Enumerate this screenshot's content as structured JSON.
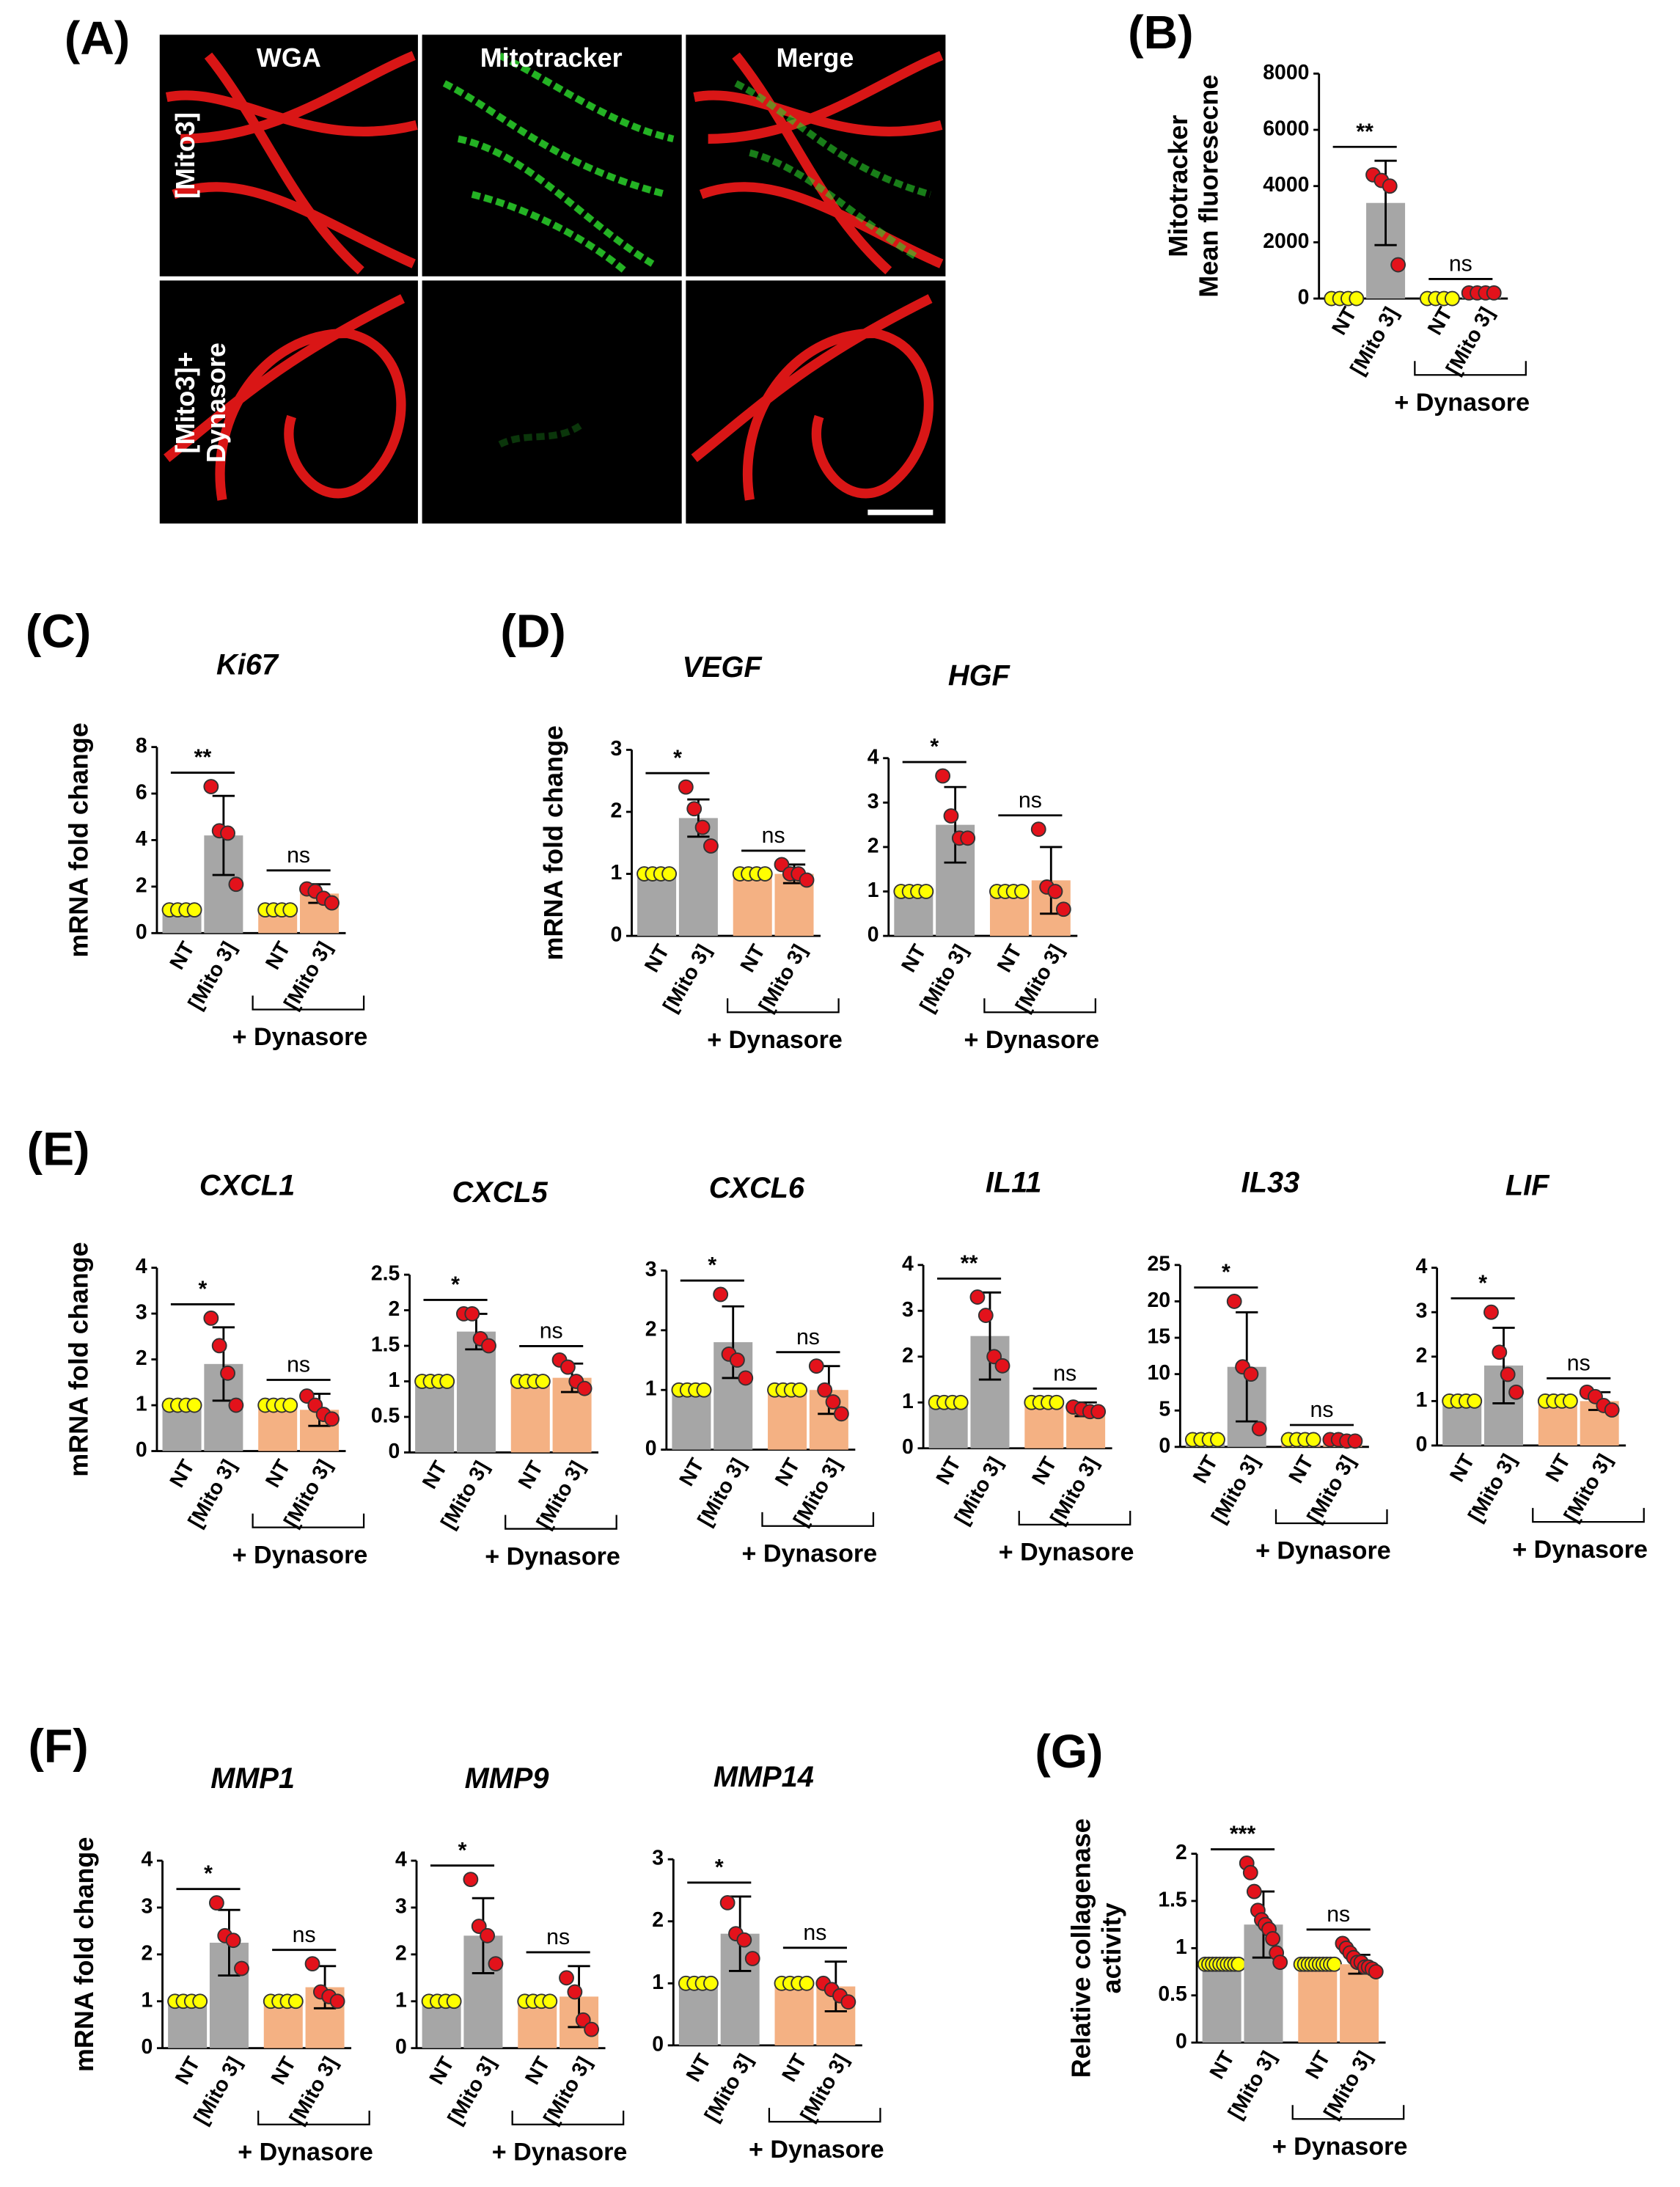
{
  "panel_labels": [
    "(A)",
    "(B)",
    "(C)",
    "(D)",
    "(E)",
    "(F)",
    "(G)"
  ],
  "figure_a": {
    "columns": [
      "WGA",
      "Mitotracker",
      "Merge"
    ],
    "rows": [
      [
        "[Mito3]"
      ],
      [
        "[Mito3]+",
        "Dynasore"
      ]
    ]
  },
  "chart_data": [
    {
      "type": "bar",
      "ylabel": [
        "Mitotracker",
        "Mean fluoresecne"
      ],
      "categories": [
        "NT",
        "[Mito 3]",
        "NT",
        "[Mito 3]"
      ],
      "colors": [
        "#a6a6a6",
        "#a6a6a6",
        "#a6a6a6",
        "#a6a6a6"
      ],
      "point_colors": [
        "#ffff00",
        "#e3121b",
        "#ffff00",
        "#e3121b"
      ],
      "values": [
        0,
        3400,
        80,
        200
      ],
      "errors": [
        0,
        1500,
        0,
        0
      ],
      "points": [
        [
          0,
          0,
          0,
          0
        ],
        [
          4400,
          4200,
          4000,
          1200
        ],
        [
          0,
          0,
          0,
          0
        ],
        [
          200,
          200,
          200,
          200
        ]
      ],
      "significance": [
        "**",
        "ns"
      ],
      "group_label": "+ Dynasore",
      "ylim": [
        0,
        8000
      ],
      "yticks": [
        0,
        2000,
        4000,
        6000,
        8000
      ]
    },
    {
      "type": "bar",
      "title": "Ki67",
      "ylabel": [
        "mRNA fold change"
      ],
      "categories": [
        "NT",
        "[Mito 3]",
        "NT",
        "[Mito 3]"
      ],
      "colors": [
        "#a6a6a6",
        "#a6a6a6",
        "#f4b183",
        "#f4b183"
      ],
      "point_colors": [
        "#ffff00",
        "#e3121b",
        "#ffff00",
        "#e3121b"
      ],
      "values": [
        1,
        4.2,
        1,
        1.7
      ],
      "errors": [
        0,
        1.7,
        0,
        0.4
      ],
      "points": [
        [
          1,
          1,
          1,
          1
        ],
        [
          6.3,
          4.4,
          4.3,
          2.1
        ],
        [
          1,
          1,
          1,
          1
        ],
        [
          1.9,
          1.8,
          1.5,
          1.3
        ]
      ],
      "significance": [
        "**",
        "ns"
      ],
      "group_label": "+ Dynasore",
      "ylim": [
        0,
        8
      ],
      "yticks": [
        0,
        2,
        4,
        6,
        8
      ]
    },
    {
      "type": "bar",
      "title": "VEGF",
      "ylabel": [
        "mRNA fold change"
      ],
      "categories": [
        "NT",
        "[Mito 3]",
        "NT",
        "[Mito 3]"
      ],
      "colors": [
        "#a6a6a6",
        "#a6a6a6",
        "#f4b183",
        "#f4b183"
      ],
      "point_colors": [
        "#ffff00",
        "#e3121b",
        "#ffff00",
        "#e3121b"
      ],
      "values": [
        1,
        1.9,
        1,
        1
      ],
      "errors": [
        0,
        0.3,
        0,
        0.15
      ],
      "points": [
        [
          1,
          1,
          1,
          1
        ],
        [
          2.4,
          2.05,
          1.75,
          1.45
        ],
        [
          1,
          1,
          1,
          1
        ],
        [
          1.15,
          1.0,
          1.0,
          0.9
        ]
      ],
      "significance": [
        "*",
        "ns"
      ],
      "group_label": "+ Dynasore",
      "ylim": [
        0,
        3
      ],
      "yticks": [
        0,
        1,
        2,
        3
      ]
    },
    {
      "type": "bar",
      "title": "HGF",
      "categories": [
        "NT",
        "[Mito 3]",
        "NT",
        "[Mito 3]"
      ],
      "colors": [
        "#a6a6a6",
        "#a6a6a6",
        "#f4b183",
        "#f4b183"
      ],
      "point_colors": [
        "#ffff00",
        "#e3121b",
        "#ffff00",
        "#e3121b"
      ],
      "values": [
        1,
        2.5,
        1,
        1.25
      ],
      "errors": [
        0,
        0.85,
        0,
        0.75
      ],
      "points": [
        [
          1,
          1,
          1,
          1
        ],
        [
          3.6,
          2.7,
          2.2,
          2.2
        ],
        [
          1,
          1,
          1,
          1
        ],
        [
          2.4,
          1.1,
          1.0,
          0.6
        ]
      ],
      "significance": [
        "*",
        "ns"
      ],
      "group_label": "+ Dynasore",
      "ylim": [
        0,
        4
      ],
      "yticks": [
        0,
        1,
        2,
        3,
        4
      ]
    },
    {
      "type": "bar",
      "title": "CXCL1",
      "ylabel": [
        "mRNA fold change"
      ],
      "categories": [
        "NT",
        "[Mito 3]",
        "NT",
        "[Mito 3]"
      ],
      "colors": [
        "#a6a6a6",
        "#a6a6a6",
        "#f4b183",
        "#f4b183"
      ],
      "point_colors": [
        "#ffff00",
        "#e3121b",
        "#ffff00",
        "#e3121b"
      ],
      "values": [
        1,
        1.9,
        1,
        0.9
      ],
      "errors": [
        0,
        0.8,
        0,
        0.35
      ],
      "points": [
        [
          1,
          1,
          1,
          1
        ],
        [
          2.9,
          2.3,
          1.7,
          1.0
        ],
        [
          1,
          1,
          1,
          1
        ],
        [
          1.2,
          1.0,
          0.8,
          0.7
        ]
      ],
      "significance": [
        "*",
        "ns"
      ],
      "group_label": "+ Dynasore",
      "ylim": [
        0,
        4
      ],
      "yticks": [
        0,
        1,
        2,
        3,
        4
      ]
    },
    {
      "type": "bar",
      "title": "CXCL5",
      "categories": [
        "NT",
        "[Mito 3]",
        "NT",
        "[Mito 3]"
      ],
      "colors": [
        "#a6a6a6",
        "#a6a6a6",
        "#f4b183",
        "#f4b183"
      ],
      "point_colors": [
        "#ffff00",
        "#e3121b",
        "#ffff00",
        "#e3121b"
      ],
      "values": [
        1,
        1.7,
        1,
        1.05
      ],
      "errors": [
        0,
        0.25,
        0,
        0.2
      ],
      "points": [
        [
          1,
          1,
          1,
          1
        ],
        [
          1.95,
          1.95,
          1.6,
          1.5
        ],
        [
          1,
          1,
          1,
          1
        ],
        [
          1.3,
          1.2,
          1.0,
          0.9
        ]
      ],
      "significance": [
        "*",
        "ns"
      ],
      "group_label": "+ Dynasore",
      "ylim": [
        0,
        2.5
      ],
      "yticks": [
        0,
        0.5,
        1,
        1.5,
        2,
        2.5
      ]
    },
    {
      "type": "bar",
      "title": "CXCL6",
      "categories": [
        "NT",
        "[Mito 3]",
        "NT",
        "[Mito 3]"
      ],
      "colors": [
        "#a6a6a6",
        "#a6a6a6",
        "#f4b183",
        "#f4b183"
      ],
      "point_colors": [
        "#ffff00",
        "#e3121b",
        "#ffff00",
        "#e3121b"
      ],
      "values": [
        1,
        1.8,
        1,
        1
      ],
      "errors": [
        0,
        0.6,
        0,
        0.4
      ],
      "points": [
        [
          1,
          1,
          1,
          1
        ],
        [
          2.6,
          1.6,
          1.5,
          1.2
        ],
        [
          1,
          1,
          1,
          1
        ],
        [
          1.4,
          1.0,
          0.8,
          0.6
        ]
      ],
      "significance": [
        "*",
        "ns"
      ],
      "group_label": "+ Dynasore",
      "ylim": [
        0,
        3
      ],
      "yticks": [
        0,
        1,
        2,
        3
      ]
    },
    {
      "type": "bar",
      "title": "IL11",
      "categories": [
        "NT",
        "[Mito 3]",
        "NT",
        "[Mito 3]"
      ],
      "colors": [
        "#a6a6a6",
        "#a6a6a6",
        "#f4b183",
        "#f4b183"
      ],
      "point_colors": [
        "#ffff00",
        "#e3121b",
        "#ffff00",
        "#e3121b"
      ],
      "values": [
        1,
        2.45,
        1,
        0.85
      ],
      "errors": [
        0,
        0.95,
        0,
        0.15
      ],
      "points": [
        [
          1,
          1,
          1,
          1
        ],
        [
          3.3,
          2.9,
          2.0,
          1.8
        ],
        [
          1,
          1,
          1,
          1
        ],
        [
          0.9,
          0.85,
          0.8,
          0.8
        ]
      ],
      "significance": [
        "**",
        "ns"
      ],
      "group_label": "+ Dynasore",
      "ylim": [
        0,
        4
      ],
      "yticks": [
        0,
        1,
        2,
        3,
        4
      ]
    },
    {
      "type": "bar",
      "title": "IL33",
      "categories": [
        "NT",
        "[Mito 3]",
        "NT",
        "[Mito 3]"
      ],
      "colors": [
        "#a6a6a6",
        "#a6a6a6",
        "#f4b183",
        "#f4b183"
      ],
      "point_colors": [
        "#ffff00",
        "#e3121b",
        "#ffff00",
        "#e3121b"
      ],
      "values": [
        1,
        11,
        1,
        0.9
      ],
      "errors": [
        0,
        7.5,
        0,
        0.2
      ],
      "points": [
        [
          1,
          1,
          1,
          1
        ],
        [
          20,
          11,
          10,
          2.5
        ],
        [
          1,
          1,
          1,
          1
        ],
        [
          1,
          1,
          0.8,
          0.8
        ]
      ],
      "significance": [
        "*",
        "ns"
      ],
      "group_label": "+ Dynasore",
      "ylim": [
        0,
        25
      ],
      "yticks": [
        0,
        5,
        10,
        15,
        20,
        25
      ]
    },
    {
      "type": "bar",
      "title": "LIF",
      "categories": [
        "NT",
        "[Mito 3]",
        "NT",
        "[Mito 3]"
      ],
      "colors": [
        "#a6a6a6",
        "#a6a6a6",
        "#f4b183",
        "#f4b183"
      ],
      "point_colors": [
        "#ffff00",
        "#e3121b",
        "#ffff00",
        "#e3121b"
      ],
      "values": [
        1,
        1.8,
        1,
        1
      ],
      "errors": [
        0,
        0.85,
        0,
        0.2
      ],
      "points": [
        [
          1,
          1,
          1,
          1
        ],
        [
          3.0,
          2.1,
          1.6,
          1.2
        ],
        [
          1,
          1,
          1,
          1
        ],
        [
          1.2,
          1.1,
          0.9,
          0.8
        ]
      ],
      "significance": [
        "*",
        "ns"
      ],
      "group_label": "+ Dynasore",
      "ylim": [
        0,
        4
      ],
      "yticks": [
        0,
        1,
        2,
        3,
        4
      ]
    },
    {
      "type": "bar",
      "title": "MMP1",
      "ylabel": [
        "mRNA fold change"
      ],
      "categories": [
        "NT",
        "[Mito 3]",
        "NT",
        "[Mito 3]"
      ],
      "colors": [
        "#a6a6a6",
        "#a6a6a6",
        "#f4b183",
        "#f4b183"
      ],
      "point_colors": [
        "#ffff00",
        "#e3121b",
        "#ffff00",
        "#e3121b"
      ],
      "values": [
        1,
        2.25,
        1,
        1.3
      ],
      "errors": [
        0,
        0.7,
        0,
        0.45
      ],
      "points": [
        [
          1,
          1,
          1,
          1
        ],
        [
          3.1,
          2.4,
          2.3,
          1.7
        ],
        [
          1,
          1,
          1,
          1
        ],
        [
          1.8,
          1.2,
          1.1,
          1.0
        ]
      ],
      "significance": [
        "*",
        "ns"
      ],
      "group_label": "+ Dynasore",
      "ylim": [
        0,
        4
      ],
      "yticks": [
        0,
        1,
        2,
        3,
        4
      ]
    },
    {
      "type": "bar",
      "title": "MMP9",
      "categories": [
        "NT",
        "[Mito 3]",
        "NT",
        "[Mito 3]"
      ],
      "colors": [
        "#a6a6a6",
        "#a6a6a6",
        "#f4b183",
        "#f4b183"
      ],
      "point_colors": [
        "#ffff00",
        "#e3121b",
        "#ffff00",
        "#e3121b"
      ],
      "values": [
        1,
        2.4,
        1,
        1.1
      ],
      "errors": [
        0,
        0.8,
        0,
        0.65
      ],
      "points": [
        [
          1,
          1,
          1,
          1
        ],
        [
          3.6,
          2.6,
          2.4,
          1.8
        ],
        [
          1,
          1,
          1,
          1
        ],
        [
          1.5,
          1.2,
          0.6,
          0.4
        ]
      ],
      "significance": [
        "*",
        "ns"
      ],
      "group_label": "+ Dynasore",
      "ylim": [
        0,
        4
      ],
      "yticks": [
        0,
        1,
        2,
        3,
        4
      ]
    },
    {
      "type": "bar",
      "title": "MMP14",
      "categories": [
        "NT",
        "[Mito 3]",
        "NT",
        "[Mito 3]"
      ],
      "colors": [
        "#a6a6a6",
        "#a6a6a6",
        "#f4b183",
        "#f4b183"
      ],
      "point_colors": [
        "#ffff00",
        "#e3121b",
        "#ffff00",
        "#e3121b"
      ],
      "values": [
        1,
        1.8,
        1,
        0.95
      ],
      "errors": [
        0,
        0.6,
        0,
        0.4
      ],
      "points": [
        [
          1,
          1,
          1,
          1
        ],
        [
          2.3,
          1.8,
          1.7,
          1.4
        ],
        [
          1,
          1,
          1,
          1
        ],
        [
          1.0,
          0.9,
          0.8,
          0.7
        ]
      ],
      "significance": [
        "*",
        "ns"
      ],
      "group_label": "+ Dynasore",
      "ylim": [
        0,
        3
      ],
      "yticks": [
        0,
        1,
        2,
        3
      ]
    },
    {
      "type": "bar",
      "ylabel": [
        "Relative collagenase",
        "activity"
      ],
      "categories": [
        "NT",
        "[Mito 3]",
        "NT",
        "[Mito 3]"
      ],
      "colors": [
        "#a6a6a6",
        "#a6a6a6",
        "#f4b183",
        "#f4b183"
      ],
      "point_colors": [
        "#ffff00",
        "#e3121b",
        "#ffff00",
        "#e3121b"
      ],
      "values": [
        0.83,
        1.25,
        0.83,
        0.83
      ],
      "errors": [
        0,
        0.35,
        0,
        0.1
      ],
      "points": [
        [
          0.83,
          0.83,
          0.83,
          0.83,
          0.83,
          0.83,
          0.83,
          0.83,
          0.83,
          0.83
        ],
        [
          1.9,
          1.8,
          1.6,
          1.4,
          1.3,
          1.25,
          1.2,
          1.1,
          0.95,
          0.85
        ],
        [
          0.83,
          0.83,
          0.83,
          0.83,
          0.83,
          0.83,
          0.83,
          0.83,
          0.83,
          0.83
        ],
        [
          1.05,
          1.0,
          0.95,
          0.9,
          0.85,
          0.85,
          0.8,
          0.8,
          0.78,
          0.75
        ]
      ],
      "significance": [
        "***",
        "ns"
      ],
      "group_label": "+ Dynasore",
      "ylim": [
        0,
        2
      ],
      "yticks": [
        0,
        0.5,
        1,
        1.5,
        2
      ]
    }
  ]
}
